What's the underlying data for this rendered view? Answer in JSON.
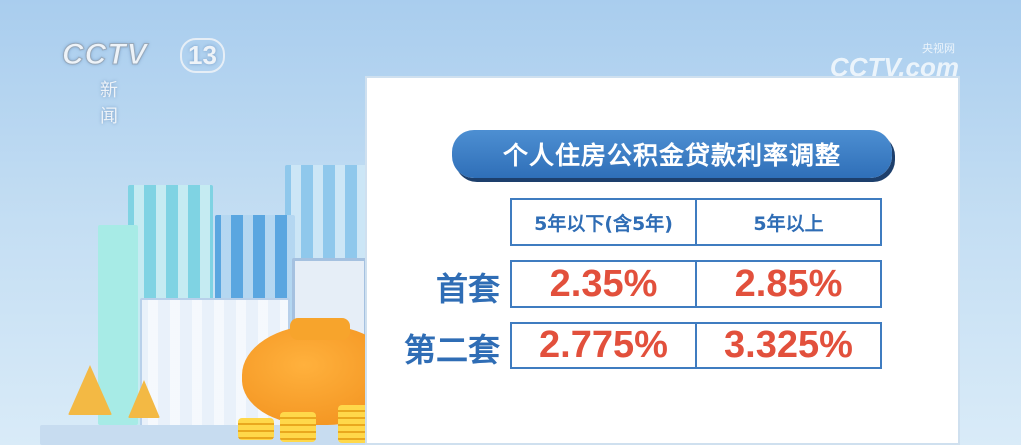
{
  "logo": {
    "brand": "CCTV",
    "channel": "13",
    "sub": "新闻"
  },
  "watermark": {
    "brand": "CCTV.com",
    "site": "央视网"
  },
  "title": "个人住房公积金贷款利率调整",
  "table": {
    "headers": [
      "5年以下(含5年)",
      "5年以上"
    ],
    "rows": [
      {
        "label": "首套",
        "values": [
          "2.35%",
          "2.85%"
        ]
      },
      {
        "label": "第二套",
        "values": [
          "2.775%",
          "3.325%"
        ]
      }
    ]
  },
  "colors": {
    "accent": "#2f6db5",
    "value": "#e2503c"
  }
}
